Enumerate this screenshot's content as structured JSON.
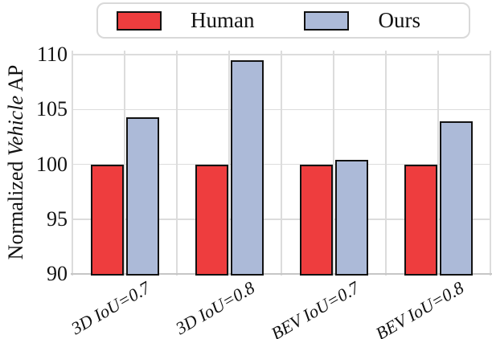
{
  "figure": {
    "description": "Grouped bar chart comparing Human vs Ours normalized Vehicle AP"
  },
  "legend": {
    "items": [
      {
        "label": "Human",
        "color": "#ee3d3e"
      },
      {
        "label": "Ours",
        "color": "#acbad8"
      }
    ]
  },
  "ylabel": {
    "prefix": "Normalized ",
    "italic": "Vehicle",
    "suffix": " AP"
  },
  "chart_data": {
    "type": "bar",
    "title": "",
    "xlabel": "",
    "ylabel": "Normalized Vehicle AP",
    "categories": [
      "3D IoU=0.7",
      "3D IoU=0.8",
      "BEV IoU=0.7",
      "BEV IoU=0.8"
    ],
    "series": [
      {
        "name": "Human",
        "color": "#ee3d3e",
        "values": [
          100,
          100,
          100,
          100
        ]
      },
      {
        "name": "Ours",
        "color": "#acbad8",
        "values": [
          104.3,
          109.5,
          100.4,
          103.9
        ]
      }
    ],
    "ylim": [
      90,
      110.4
    ],
    "yticks": [
      90,
      95,
      100,
      105,
      110
    ],
    "grid": true,
    "bar_edge_color": "#121212",
    "legend_position": "top"
  }
}
